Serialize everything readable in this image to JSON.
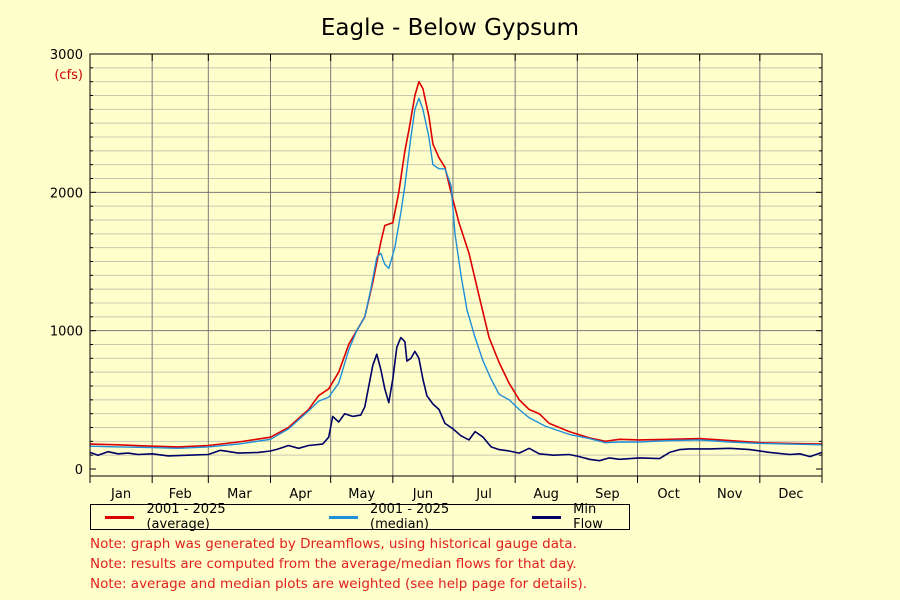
{
  "chart_data": {
    "type": "line",
    "title": "Eagle - Below Gypsum",
    "ylabel": "(cfs)",
    "xlabel": "",
    "ylim": [
      0,
      3000
    ],
    "x_range_day": [
      1,
      366
    ],
    "yticks": [
      "0",
      "1000",
      "2000",
      "3000"
    ],
    "months": [
      "Jan",
      "Feb",
      "Mar",
      "Apr",
      "May",
      "Jun",
      "Jul",
      "Aug",
      "Sep",
      "Oct",
      "Nov",
      "Dec"
    ],
    "grid": true,
    "legend_position": "bottom",
    "series": [
      {
        "name": "2001 - 2025 (average)",
        "color": "#dd0000",
        "points": [
          [
            1,
            180
          ],
          [
            15,
            175
          ],
          [
            32,
            165
          ],
          [
            45,
            160
          ],
          [
            60,
            170
          ],
          [
            75,
            195
          ],
          [
            91,
            230
          ],
          [
            100,
            300
          ],
          [
            110,
            430
          ],
          [
            115,
            530
          ],
          [
            120,
            580
          ],
          [
            125,
            700
          ],
          [
            130,
            900
          ],
          [
            134,
            1000
          ],
          [
            138,
            1100
          ],
          [
            142,
            1350
          ],
          [
            146,
            1640
          ],
          [
            148,
            1760
          ],
          [
            152,
            1780
          ],
          [
            155,
            2000
          ],
          [
            158,
            2300
          ],
          [
            160,
            2450
          ],
          [
            163,
            2700
          ],
          [
            165,
            2800
          ],
          [
            167,
            2750
          ],
          [
            170,
            2550
          ],
          [
            172,
            2350
          ],
          [
            175,
            2250
          ],
          [
            178,
            2180
          ],
          [
            181,
            2000
          ],
          [
            185,
            1780
          ],
          [
            190,
            1560
          ],
          [
            195,
            1250
          ],
          [
            200,
            950
          ],
          [
            205,
            770
          ],
          [
            210,
            620
          ],
          [
            215,
            500
          ],
          [
            220,
            430
          ],
          [
            225,
            400
          ],
          [
            230,
            330
          ],
          [
            240,
            270
          ],
          [
            250,
            225
          ],
          [
            258,
            200
          ],
          [
            265,
            215
          ],
          [
            275,
            210
          ],
          [
            290,
            215
          ],
          [
            305,
            220
          ],
          [
            320,
            205
          ],
          [
            335,
            190
          ],
          [
            350,
            185
          ],
          [
            366,
            180
          ]
        ]
      },
      {
        "name": "2001 - 2025 (median)",
        "color": "#1f8fd8",
        "points": [
          [
            1,
            165
          ],
          [
            15,
            160
          ],
          [
            32,
            155
          ],
          [
            45,
            150
          ],
          [
            60,
            160
          ],
          [
            75,
            180
          ],
          [
            91,
            215
          ],
          [
            100,
            290
          ],
          [
            110,
            420
          ],
          [
            115,
            490
          ],
          [
            120,
            520
          ],
          [
            125,
            620
          ],
          [
            130,
            860
          ],
          [
            134,
            1000
          ],
          [
            138,
            1100
          ],
          [
            141,
            1300
          ],
          [
            144,
            1530
          ],
          [
            146,
            1560
          ],
          [
            148,
            1480
          ],
          [
            150,
            1450
          ],
          [
            153,
            1600
          ],
          [
            156,
            1850
          ],
          [
            158,
            2050
          ],
          [
            161,
            2400
          ],
          [
            163,
            2600
          ],
          [
            165,
            2680
          ],
          [
            167,
            2600
          ],
          [
            170,
            2400
          ],
          [
            172,
            2200
          ],
          [
            175,
            2170
          ],
          [
            178,
            2170
          ],
          [
            181,
            2050
          ],
          [
            183,
            1700
          ],
          [
            186,
            1400
          ],
          [
            189,
            1150
          ],
          [
            193,
            950
          ],
          [
            197,
            780
          ],
          [
            201,
            650
          ],
          [
            205,
            540
          ],
          [
            210,
            500
          ],
          [
            215,
            430
          ],
          [
            220,
            370
          ],
          [
            228,
            310
          ],
          [
            240,
            250
          ],
          [
            250,
            220
          ],
          [
            258,
            190
          ],
          [
            265,
            195
          ],
          [
            275,
            195
          ],
          [
            290,
            205
          ],
          [
            305,
            210
          ],
          [
            320,
            195
          ],
          [
            335,
            185
          ],
          [
            350,
            180
          ],
          [
            366,
            175
          ]
        ]
      },
      {
        "name": "Min Flow",
        "color": "#000066",
        "points": [
          [
            1,
            120
          ],
          [
            5,
            100
          ],
          [
            10,
            125
          ],
          [
            15,
            110
          ],
          [
            20,
            115
          ],
          [
            25,
            105
          ],
          [
            32,
            110
          ],
          [
            40,
            95
          ],
          [
            50,
            100
          ],
          [
            60,
            105
          ],
          [
            66,
            135
          ],
          [
            75,
            115
          ],
          [
            85,
            120
          ],
          [
            91,
            130
          ],
          [
            95,
            145
          ],
          [
            100,
            170
          ],
          [
            105,
            150
          ],
          [
            110,
            170
          ],
          [
            117,
            180
          ],
          [
            120,
            230
          ],
          [
            122,
            380
          ],
          [
            125,
            340
          ],
          [
            128,
            400
          ],
          [
            132,
            380
          ],
          [
            136,
            390
          ],
          [
            138,
            450
          ],
          [
            140,
            600
          ],
          [
            142,
            750
          ],
          [
            144,
            830
          ],
          [
            146,
            720
          ],
          [
            148,
            580
          ],
          [
            150,
            480
          ],
          [
            152,
            650
          ],
          [
            154,
            880
          ],
          [
            156,
            950
          ],
          [
            158,
            920
          ],
          [
            159,
            780
          ],
          [
            161,
            800
          ],
          [
            163,
            850
          ],
          [
            165,
            800
          ],
          [
            167,
            650
          ],
          [
            169,
            530
          ],
          [
            172,
            470
          ],
          [
            175,
            430
          ],
          [
            178,
            330
          ],
          [
            182,
            290
          ],
          [
            186,
            240
          ],
          [
            190,
            210
          ],
          [
            193,
            270
          ],
          [
            197,
            230
          ],
          [
            201,
            160
          ],
          [
            205,
            140
          ],
          [
            210,
            130
          ],
          [
            215,
            115
          ],
          [
            220,
            150
          ],
          [
            225,
            110
          ],
          [
            232,
            100
          ],
          [
            240,
            105
          ],
          [
            245,
            90
          ],
          [
            250,
            70
          ],
          [
            255,
            60
          ],
          [
            260,
            80
          ],
          [
            265,
            70
          ],
          [
            275,
            80
          ],
          [
            285,
            75
          ],
          [
            290,
            120
          ],
          [
            295,
            140
          ],
          [
            300,
            145
          ],
          [
            310,
            145
          ],
          [
            320,
            150
          ],
          [
            330,
            140
          ],
          [
            340,
            120
          ],
          [
            350,
            105
          ],
          [
            355,
            110
          ],
          [
            360,
            90
          ],
          [
            366,
            120
          ]
        ]
      }
    ]
  },
  "notes": [
    "Note: graph was generated by Dreamflows, using historical gauge data.",
    "Note: results are computed from the average/median flows for that day.",
    "Note: average and median plots are weighted (see help page for details)."
  ]
}
